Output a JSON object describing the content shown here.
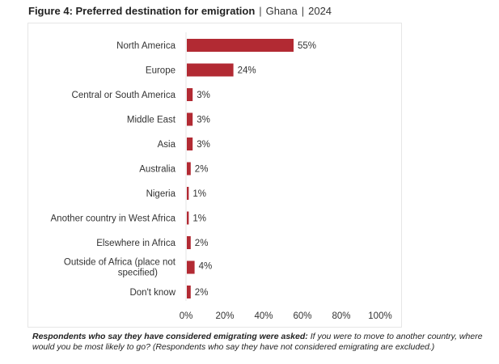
{
  "header": {
    "title_bold": "Figure 4: Preferred destination for emigration",
    "separator": "|",
    "country": "Ghana",
    "year": "2024"
  },
  "footnote": {
    "bold": "Respondents who say they have considered emigrating were asked:",
    "text": " If you were to move to another country, where would you be most likely to go? (Respondents who say they have not considered emigrating are excluded.)"
  },
  "chart_data": {
    "type": "bar",
    "orientation": "horizontal",
    "title": "Figure 4: Preferred destination for emigration | Ghana | 2024",
    "categories": [
      "North America",
      "Europe",
      "Central or South America",
      "Middle East",
      "Asia",
      "Australia",
      "Nigeria",
      "Another country in West Africa",
      "Elsewhere in Africa",
      "Outside of Africa (place not specified)",
      "Don't know"
    ],
    "values": [
      55,
      24,
      3,
      3,
      3,
      2,
      1,
      1,
      2,
      4,
      2
    ],
    "value_labels": [
      "55%",
      "24%",
      "3%",
      "3%",
      "3%",
      "2%",
      "1%",
      "1%",
      "2%",
      "4%",
      "2%"
    ],
    "xlabel": "",
    "ylabel": "",
    "xlim": [
      0,
      100
    ],
    "x_ticks": [
      "0%",
      "20%",
      "40%",
      "60%",
      "80%",
      "100%"
    ],
    "grid": false,
    "legend": "none",
    "bar_color": "#b22a33"
  }
}
